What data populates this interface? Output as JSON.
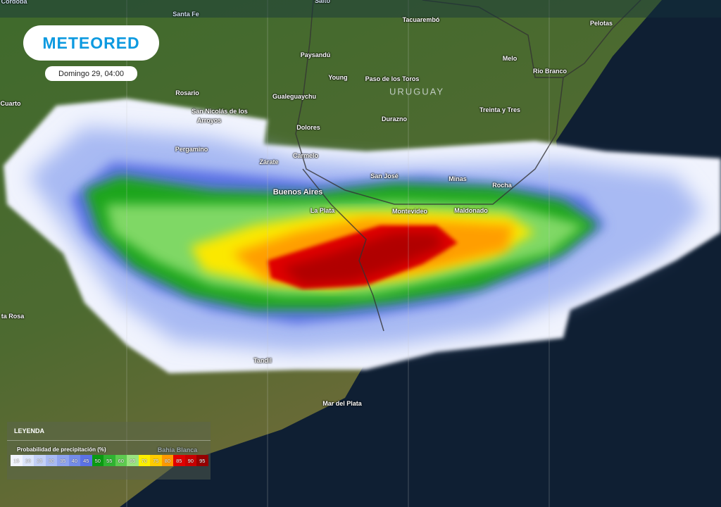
{
  "brand": {
    "logo_text": "METEORED"
  },
  "timestamp": "Domingo 29, 04:00",
  "country_label": "URUGUAY",
  "cities": [
    {
      "name": "Córdoba",
      "style": "dim"
    },
    {
      "name": "Santa Fe",
      "style": "dim"
    },
    {
      "name": "Salto",
      "style": "dim"
    },
    {
      "name": "Tacuarembó"
    },
    {
      "name": "Pelotas"
    },
    {
      "name": "Paysandú"
    },
    {
      "name": "Melo"
    },
    {
      "name": "Young"
    },
    {
      "name": "Rio Branco"
    },
    {
      "name": "Rosario"
    },
    {
      "name": "Gualeguaychu"
    },
    {
      "name": "Paso de los Toros"
    },
    {
      "name": "Cuarto"
    },
    {
      "name": "San Nicolás de los"
    },
    {
      "name": "Arroyos"
    },
    {
      "name": "Treinta y Tres"
    },
    {
      "name": "Dolores"
    },
    {
      "name": "Durazno"
    },
    {
      "name": "Pergamino"
    },
    {
      "name": "Carmelo"
    },
    {
      "name": "Zárate"
    },
    {
      "name": "San José"
    },
    {
      "name": "Minas"
    },
    {
      "name": "Rocha"
    },
    {
      "name": "Buenos Aires",
      "style": "big"
    },
    {
      "name": "La Plata"
    },
    {
      "name": "Montevideo"
    },
    {
      "name": "Maldonado"
    },
    {
      "name": "Tandil"
    },
    {
      "name": "ta Rosa"
    },
    {
      "name": "Mar del Plata"
    },
    {
      "name": "Bahía Blanca",
      "style": "dim"
    }
  ],
  "legend": {
    "title": "LEYENDA",
    "subtitle": "Probabilidad de precipitación (%)",
    "steps": [
      {
        "value": "15",
        "color": "#f1f4fd"
      },
      {
        "value": "20",
        "color": "#dce5fb"
      },
      {
        "value": "25",
        "color": "#c3d0f7"
      },
      {
        "value": "30",
        "color": "#a8baf3"
      },
      {
        "value": "35",
        "color": "#8ea3ee"
      },
      {
        "value": "40",
        "color": "#748ce9"
      },
      {
        "value": "45",
        "color": "#5b72e5"
      },
      {
        "value": "50",
        "color": "#0a9a12"
      },
      {
        "value": "55",
        "color": "#2fb331"
      },
      {
        "value": "60",
        "color": "#5dcb4f"
      },
      {
        "value": "65",
        "color": "#99e47f"
      },
      {
        "value": "70",
        "color": "#fbf000"
      },
      {
        "value": "75",
        "color": "#ffcc00"
      },
      {
        "value": "80",
        "color": "#ff9900"
      },
      {
        "value": "85",
        "color": "#e00000"
      },
      {
        "value": "90",
        "color": "#c80000"
      },
      {
        "value": "95",
        "color": "#960000"
      }
    ]
  }
}
